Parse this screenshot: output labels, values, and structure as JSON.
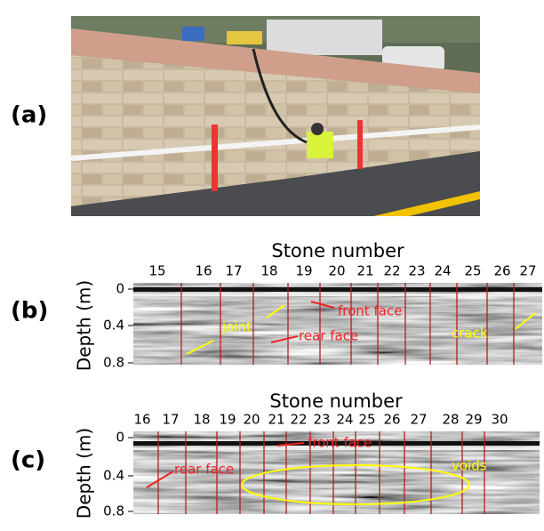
{
  "panels": [
    {
      "label": "(a)"
    },
    {
      "label": "(b)",
      "axis_title": "Stone number",
      "y_label": "Depth (m)",
      "stone_numbers": [
        "15",
        "16",
        "17",
        "18",
        "19",
        "20",
        "21",
        "22",
        "23",
        "24",
        "25",
        "26",
        "27"
      ],
      "depth_ticks": [
        "0",
        "0.4",
        "0.8"
      ],
      "annotations": [
        "joint",
        "front face",
        "rear face",
        "crack"
      ]
    },
    {
      "label": "(c)",
      "axis_title": "Stone number",
      "y_label": "Depth (m)",
      "stone_numbers": [
        "16",
        "17",
        "18",
        "19",
        "20",
        "21",
        "22",
        "23",
        "24",
        "25",
        "26",
        "27",
        "28",
        "29",
        "30"
      ],
      "depth_ticks": [
        "0",
        "0.4",
        "0.8"
      ],
      "annotations": [
        "rear face",
        "front face",
        "voids"
      ]
    }
  ]
}
